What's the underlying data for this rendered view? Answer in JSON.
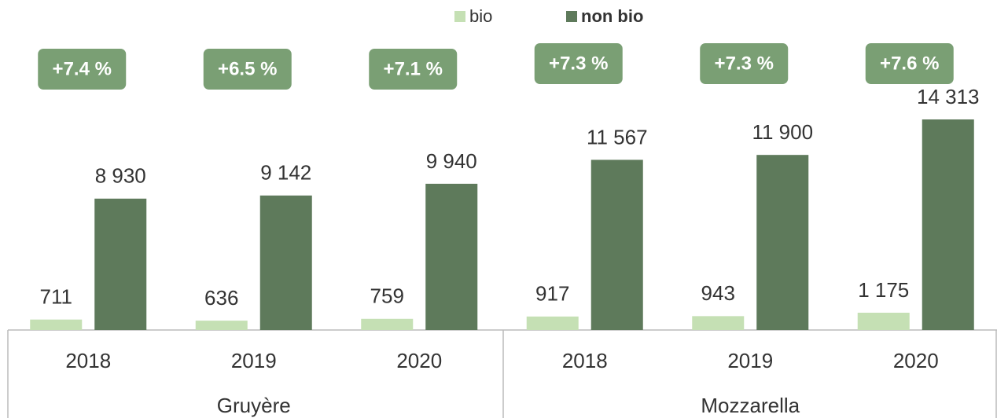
{
  "chart_data": {
    "type": "bar",
    "categories": [
      "2018",
      "2019",
      "2020",
      "2018",
      "2019",
      "2020"
    ],
    "groups": [
      "Gruyère",
      "Mozzarella"
    ],
    "series": [
      {
        "name": "bio",
        "color": "#c5e0b4",
        "values": [
          711,
          636,
          759,
          917,
          943,
          1175
        ],
        "value_labels": [
          "711",
          "636",
          "759",
          "917",
          "943",
          "1 175"
        ]
      },
      {
        "name": "non bio",
        "color": "#5e7a5b",
        "values": [
          8930,
          9142,
          9940,
          11567,
          11900,
          14313
        ],
        "value_labels": [
          "8 930",
          "9 142",
          "9 940",
          "11 567",
          "11 900",
          "14 313"
        ]
      }
    ],
    "annotations": [
      "+7.4 %",
      "+6.5 %",
      "+7.1 %",
      "+7.3 %",
      "+7.3 %",
      "+7.6 %"
    ],
    "annotation_color": "#7a9f74",
    "legend": "top"
  }
}
